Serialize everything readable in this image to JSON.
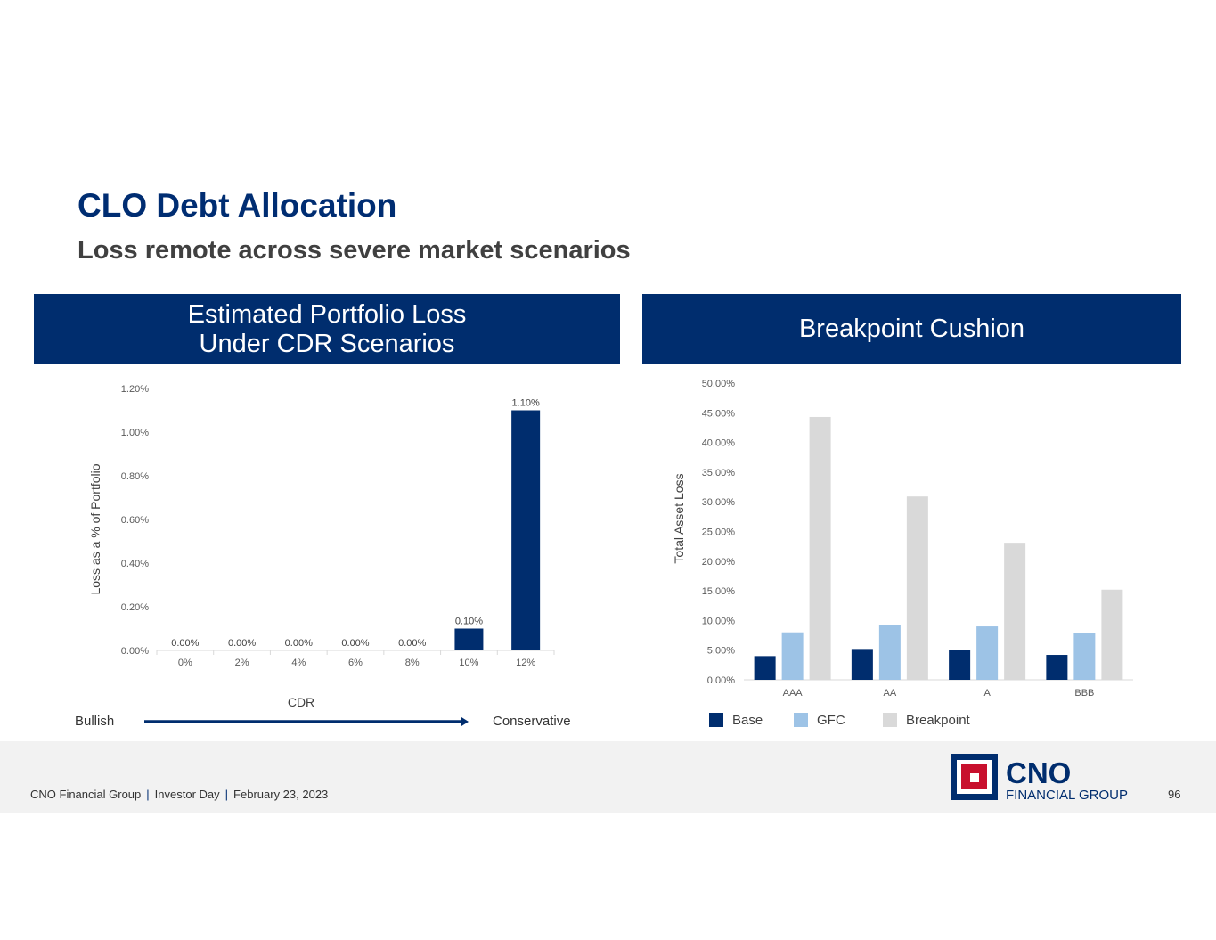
{
  "title": "CLO Debt Allocation",
  "subtitle": "Loss remote across severe market scenarios",
  "left_panel": {
    "header_line1": "Estimated Portfolio Loss",
    "header_line2": "Under CDR Scenarios"
  },
  "right_panel": {
    "header": "Breakpoint Cushion"
  },
  "scale": {
    "left_label": "Bullish",
    "right_label": "Conservative"
  },
  "footer": {
    "company": "CNO Financial Group",
    "event": "Investor Day",
    "date": "February 23, 2023",
    "separator": "|",
    "page": "96",
    "logo_name": "CNO",
    "logo_sub": "FINANCIAL GROUP"
  },
  "colors": {
    "navy": "#002d6e",
    "light_blue": "#9dc3e6",
    "gray": "#d9d9d9"
  },
  "chart_data": [
    {
      "type": "bar",
      "title": "Estimated Portfolio Loss Under CDR Scenarios",
      "xlabel": "CDR",
      "ylabel": "Loss as a % of Portfolio",
      "categories": [
        "0%",
        "2%",
        "4%",
        "6%",
        "8%",
        "10%",
        "12%"
      ],
      "values": [
        0.0,
        0.0,
        0.0,
        0.0,
        0.0,
        0.1,
        1.1
      ],
      "data_labels": [
        "0.00%",
        "0.00%",
        "0.00%",
        "0.00%",
        "0.00%",
        "0.10%",
        "1.10%"
      ],
      "ylim": [
        0,
        1.2
      ],
      "yticks": [
        "0.00%",
        "0.20%",
        "0.40%",
        "0.60%",
        "0.80%",
        "1.00%",
        "1.20%"
      ],
      "grid": false
    },
    {
      "type": "bar",
      "title": "Breakpoint Cushion",
      "xlabel": "",
      "ylabel": "Total Asset Loss",
      "categories": [
        "AAA",
        "AA",
        "A",
        "BBB"
      ],
      "series": [
        {
          "name": "Base",
          "values": [
            4.0,
            5.2,
            5.1,
            4.2
          ]
        },
        {
          "name": "GFC",
          "values": [
            8.0,
            9.3,
            9.0,
            7.9
          ]
        },
        {
          "name": "Breakpoint",
          "values": [
            44.3,
            30.9,
            23.1,
            15.2
          ]
        }
      ],
      "ylim": [
        0,
        50
      ],
      "yticks": [
        "0.00%",
        "5.00%",
        "10.00%",
        "15.00%",
        "20.00%",
        "25.00%",
        "30.00%",
        "35.00%",
        "40.00%",
        "45.00%",
        "50.00%"
      ],
      "legend": "bottom",
      "grid": false
    }
  ]
}
